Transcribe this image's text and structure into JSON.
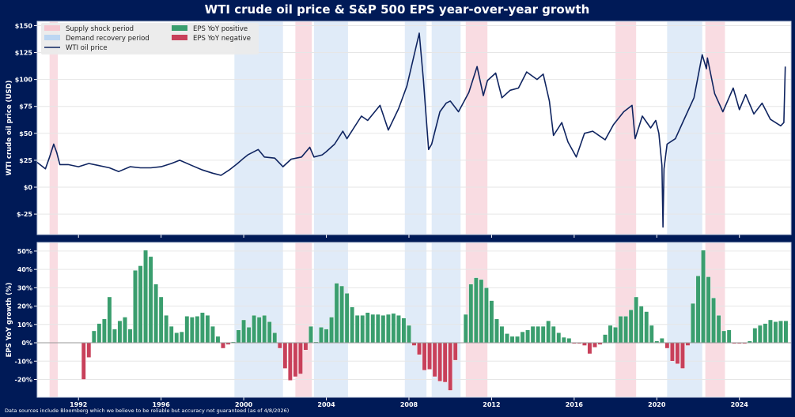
{
  "colors": {
    "background": "#001a57",
    "supply": "#f9dce2",
    "demand": "#deeaf8",
    "positive": "#3a9e6e",
    "negative": "#c8405a",
    "line": "#0f2460"
  },
  "title": "WTI crude oil price & S&P 500 EPS year-over-year growth",
  "footnote": "Data sources include Bloomberg which we believe to be reliable but accuracy not guaranteed (as of 4/8/2026)",
  "legend": {
    "placement": "top-left",
    "items": [
      {
        "label": "Supply shock period",
        "kind": "supply"
      },
      {
        "label": "Demand recovery period",
        "kind": "demand"
      },
      {
        "label": "WTI oil price",
        "kind": "line"
      },
      {
        "label": "EPS YoY positive",
        "kind": "positive"
      },
      {
        "label": "EPS YoY negative",
        "kind": "negative"
      }
    ]
  },
  "chart_data": [
    {
      "type": "line",
      "ylabel": "WTI crude oil price (USD)",
      "xlim": [
        1990,
        2026.5
      ],
      "ylim": [
        -44,
        154
      ],
      "yticks": [
        150,
        125,
        100,
        75,
        50,
        25,
        0,
        -25
      ],
      "ytick_labels": [
        "$150",
        "$125",
        "$100",
        "$75",
        "$50",
        "$25",
        "$0",
        "$-25"
      ],
      "grid": true,
      "supply_shock_periods": [
        [
          1990.6,
          1991.0
        ],
        [
          2002.5,
          2003.3
        ],
        [
          2010.75,
          2011.8
        ],
        [
          2018.0,
          2019.0
        ],
        [
          2022.35,
          2023.3
        ]
      ],
      "demand_recovery_periods": [
        [
          1999.55,
          2001.9
        ],
        [
          2003.4,
          2005.05
        ],
        [
          2007.8,
          2008.85
        ],
        [
          2009.1,
          2010.5
        ],
        [
          2020.5,
          2022.2
        ]
      ],
      "series": [
        {
          "name": "WTI oil price",
          "points": [
            [
              1990.0,
              23
            ],
            [
              1990.4,
              17
            ],
            [
              1990.6,
              28
            ],
            [
              1990.8,
              40
            ],
            [
              1990.95,
              32
            ],
            [
              1991.1,
              21
            ],
            [
              1991.5,
              21
            ],
            [
              1992.0,
              19
            ],
            [
              1992.5,
              22
            ],
            [
              1993.0,
              20
            ],
            [
              1993.5,
              18
            ],
            [
              1993.95,
              14.5
            ],
            [
              1994.5,
              19
            ],
            [
              1995.0,
              18
            ],
            [
              1995.5,
              18
            ],
            [
              1996.0,
              19
            ],
            [
              1996.5,
              22
            ],
            [
              1996.9,
              25
            ],
            [
              1997.5,
              20
            ],
            [
              1998.0,
              16
            ],
            [
              1998.5,
              13
            ],
            [
              1998.9,
              11
            ],
            [
              1999.3,
              16
            ],
            [
              1999.7,
              22
            ],
            [
              2000.0,
              27
            ],
            [
              2000.2,
              30
            ],
            [
              2000.7,
              35
            ],
            [
              2001.0,
              28
            ],
            [
              2001.5,
              27
            ],
            [
              2001.9,
              19
            ],
            [
              2002.3,
              26
            ],
            [
              2002.8,
              28
            ],
            [
              2003.2,
              37
            ],
            [
              2003.4,
              28
            ],
            [
              2003.8,
              30
            ],
            [
              2004.0,
              33
            ],
            [
              2004.4,
              40
            ],
            [
              2004.8,
              52
            ],
            [
              2005.0,
              45
            ],
            [
              2005.7,
              66
            ],
            [
              2006.0,
              62
            ],
            [
              2006.6,
              76
            ],
            [
              2007.0,
              53
            ],
            [
              2007.5,
              73
            ],
            [
              2007.9,
              94
            ],
            [
              2008.5,
              143
            ],
            [
              2008.7,
              100
            ],
            [
              2008.95,
              35
            ],
            [
              2009.1,
              40
            ],
            [
              2009.5,
              70
            ],
            [
              2009.8,
              78
            ],
            [
              2010.0,
              80
            ],
            [
              2010.4,
              70
            ],
            [
              2010.9,
              88
            ],
            [
              2011.3,
              112
            ],
            [
              2011.6,
              85
            ],
            [
              2011.8,
              99
            ],
            [
              2012.2,
              106
            ],
            [
              2012.5,
              83
            ],
            [
              2012.9,
              90
            ],
            [
              2013.3,
              92
            ],
            [
              2013.7,
              107
            ],
            [
              2014.2,
              100
            ],
            [
              2014.5,
              105
            ],
            [
              2014.8,
              80
            ],
            [
              2015.0,
              48
            ],
            [
              2015.4,
              60
            ],
            [
              2015.7,
              42
            ],
            [
              2016.1,
              28
            ],
            [
              2016.5,
              50
            ],
            [
              2016.9,
              52
            ],
            [
              2017.5,
              44
            ],
            [
              2017.9,
              58
            ],
            [
              2018.4,
              70
            ],
            [
              2018.8,
              76
            ],
            [
              2018.95,
              45
            ],
            [
              2019.3,
              66
            ],
            [
              2019.7,
              55
            ],
            [
              2019.95,
              62
            ],
            [
              2020.1,
              50
            ],
            [
              2020.25,
              20
            ],
            [
              2020.3,
              -37
            ],
            [
              2020.35,
              17
            ],
            [
              2020.5,
              40
            ],
            [
              2020.9,
              45
            ],
            [
              2021.3,
              62
            ],
            [
              2021.8,
              83
            ],
            [
              2022.2,
              123
            ],
            [
              2022.4,
              110
            ],
            [
              2022.45,
              120
            ],
            [
              2022.8,
              87
            ],
            [
              2023.2,
              70
            ],
            [
              2023.7,
              92
            ],
            [
              2024.0,
              72
            ],
            [
              2024.3,
              86
            ],
            [
              2024.7,
              68
            ],
            [
              2025.1,
              78
            ],
            [
              2025.5,
              63
            ],
            [
              2026.0,
              57
            ],
            [
              2026.15,
              60
            ],
            [
              2026.22,
              112
            ]
          ]
        }
      ]
    },
    {
      "type": "bar",
      "ylabel": "EPS YoY growth (%)",
      "xlim": [
        1990,
        2026.5
      ],
      "ylim": [
        -29.7,
        54.7
      ],
      "yticks": [
        50,
        40,
        30,
        20,
        10,
        0,
        -10,
        -20
      ],
      "ytick_labels": [
        "50%",
        "40%",
        "30%",
        "20%",
        "10%",
        "0%",
        "-10%",
        "-20%"
      ],
      "xticks": [
        1992,
        1996,
        2000,
        2004,
        2008,
        2012,
        2016,
        2020,
        2024
      ],
      "xtick_labels": [
        "1992",
        "1996",
        "2000",
        "2004",
        "2008",
        "2012",
        "2016",
        "2020",
        "2024"
      ],
      "grid": true,
      "x_start": 1992.25,
      "x_step": 0.25,
      "values": [
        -20,
        -8,
        6.5,
        10.5,
        13,
        25,
        7.5,
        12,
        14,
        7.5,
        39.5,
        42,
        50.5,
        47,
        32,
        25,
        15,
        9,
        5.5,
        6,
        14.5,
        14,
        14.5,
        16.5,
        15,
        9,
        3.5,
        -3,
        -1,
        0.5,
        7,
        12.5,
        8.5,
        15,
        14,
        15,
        11.5,
        5.5,
        -3,
        -14,
        -20.5,
        -18.5,
        -17,
        -4,
        9,
        0.5,
        8.5,
        7.5,
        14,
        32.5,
        31,
        27,
        19.5,
        15,
        15,
        16.5,
        15.5,
        15.5,
        15,
        15.5,
        16,
        15,
        13.5,
        9.5,
        -1.5,
        -6.5,
        -15,
        -14.5,
        -18.5,
        -21,
        -21.5,
        -26,
        -9.5,
        0,
        15.5,
        32,
        35.5,
        34.5,
        30,
        23,
        13,
        9,
        5,
        3.5,
        3.5,
        6,
        7,
        9,
        9,
        9,
        12,
        9,
        5.5,
        3,
        2.5,
        -0.5,
        -0.5,
        -1.5,
        -6,
        -2.5,
        -1,
        4.5,
        9.5,
        8.5,
        14.5,
        14.5,
        18,
        25,
        20,
        17,
        9.5,
        1,
        2.5,
        -3,
        -10,
        -11.5,
        -14,
        -1.5,
        21.5,
        36.5,
        50.5,
        36,
        24.5,
        15,
        6.5,
        7,
        -0.5,
        -0.5,
        -0.5,
        1,
        8,
        9.5,
        10.5,
        12.5,
        11.5,
        12,
        12
      ]
    }
  ]
}
